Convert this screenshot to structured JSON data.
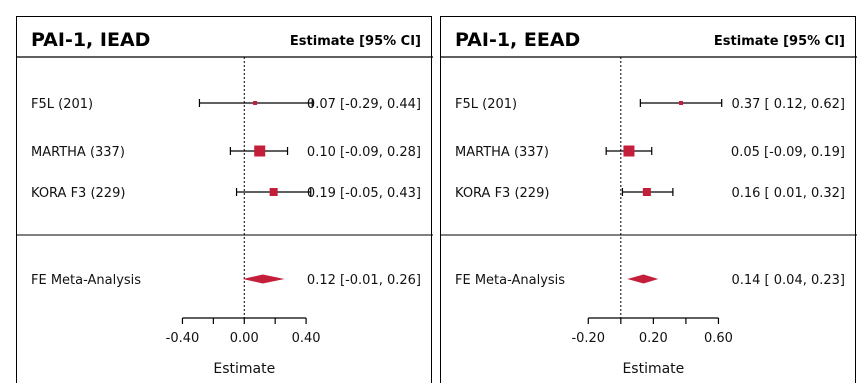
{
  "chart_data": [
    {
      "type": "forest",
      "title": "PAI-1, IEAD",
      "estimate_header": "Estimate [95% CI]",
      "xlabel": "Estimate",
      "xlim": [
        -0.5,
        0.6
      ],
      "ticks": [
        -0.4,
        0.0,
        0.4
      ],
      "tick_labels": [
        "-0.40",
        "0.00",
        "0.40"
      ],
      "minor_ticks": [
        -0.4,
        -0.2,
        0.0,
        0.2,
        0.4
      ],
      "studies": [
        {
          "label": "F5L (201)",
          "estimate": 0.07,
          "lower": -0.29,
          "upper": 0.44,
          "weight": "small",
          "text": "0.07 [-0.29, 0.44]"
        },
        {
          "label": "MARTHA (337)",
          "estimate": 0.1,
          "lower": -0.09,
          "upper": 0.28,
          "weight": "large",
          "text": "0.10 [-0.09, 0.28]"
        },
        {
          "label": "KORA F3 (229)",
          "estimate": 0.19,
          "lower": -0.05,
          "upper": 0.43,
          "weight": "medium",
          "text": "0.19 [-0.05, 0.43]"
        }
      ],
      "summary": {
        "label": "FE Meta-Analysis",
        "estimate": 0.12,
        "lower": -0.01,
        "upper": 0.26,
        "text": "0.12 [-0.01, 0.26]"
      }
    },
    {
      "type": "forest",
      "title": "PAI-1, EEAD",
      "estimate_header": "Estimate [95% CI]",
      "xlabel": "Estimate",
      "xlim": [
        -0.3,
        0.8
      ],
      "ticks": [
        -0.2,
        0.2,
        0.6
      ],
      "tick_labels": [
        "-0.20",
        "0.20",
        "0.60"
      ],
      "minor_ticks": [
        -0.2,
        0.0,
        0.2,
        0.4,
        0.6
      ],
      "studies": [
        {
          "label": "F5L (201)",
          "estimate": 0.37,
          "lower": 0.12,
          "upper": 0.62,
          "weight": "small",
          "text": "0.37 [ 0.12, 0.62]"
        },
        {
          "label": "MARTHA (337)",
          "estimate": 0.05,
          "lower": -0.09,
          "upper": 0.19,
          "weight": "large",
          "text": "0.05 [-0.09, 0.19]"
        },
        {
          "label": "KORA F3 (229)",
          "estimate": 0.16,
          "lower": 0.01,
          "upper": 0.32,
          "weight": "medium",
          "text": "0.16 [ 0.01, 0.32]"
        }
      ],
      "summary": {
        "label": "FE Meta-Analysis",
        "estimate": 0.14,
        "lower": 0.04,
        "upper": 0.23,
        "text": "0.14 [ 0.04, 0.23]"
      }
    }
  ],
  "colors": {
    "marker": "#c41e3a",
    "line": "#000000"
  }
}
